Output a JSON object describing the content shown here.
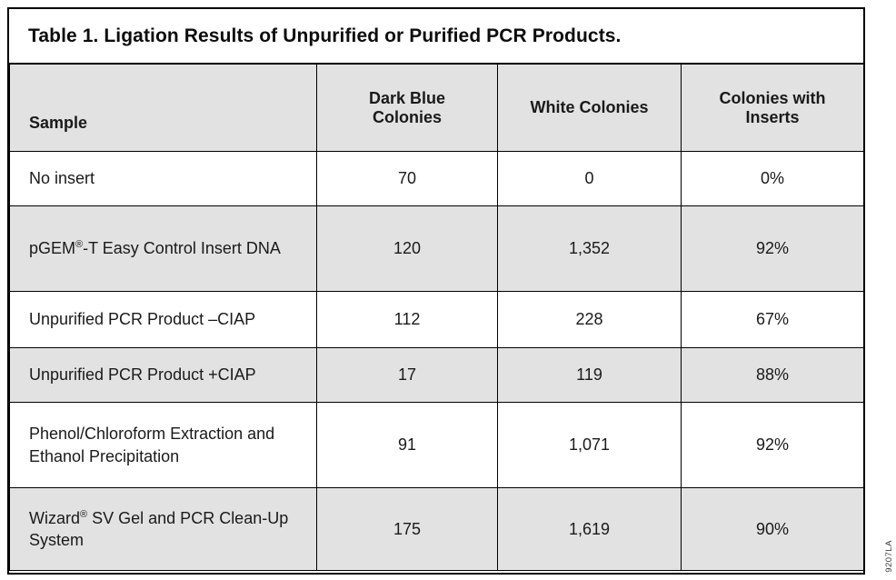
{
  "title": "Table 1. Ligation Results of Unpurified or Purified PCR Products.",
  "figure_code": "9207LA",
  "colors": {
    "header_bg": "#e2e2e2",
    "alt_row_bg": "#e2e2e2",
    "border": "#000000",
    "text": "#1a1a1a"
  },
  "table": {
    "columns": {
      "sample": "Sample",
      "dark_blue": "Dark Blue Colonies",
      "white": "White Colonies",
      "inserts": "Colonies with Inserts"
    },
    "rows": [
      {
        "sample": "No insert",
        "dark_blue": "70",
        "white": "0",
        "inserts": "0%"
      },
      {
        "sample": "pGEM®-T Easy Control Insert DNA",
        "dark_blue": "120",
        "white": "1,352",
        "inserts": "92%"
      },
      {
        "sample": "Unpurified PCR Product –CIAP",
        "dark_blue": "112",
        "white": "228",
        "inserts": "67%"
      },
      {
        "sample": "Unpurified PCR Product +CIAP",
        "dark_blue": "17",
        "white": "119",
        "inserts": "88%"
      },
      {
        "sample": "Phenol/Chloroform Extraction and Ethanol Precipitation",
        "dark_blue": "91",
        "white": "1,071",
        "inserts": "92%"
      },
      {
        "sample": "Wizard® SV Gel and PCR Clean-Up System",
        "dark_blue": "175",
        "white": "1,619",
        "inserts": "90%"
      }
    ]
  }
}
